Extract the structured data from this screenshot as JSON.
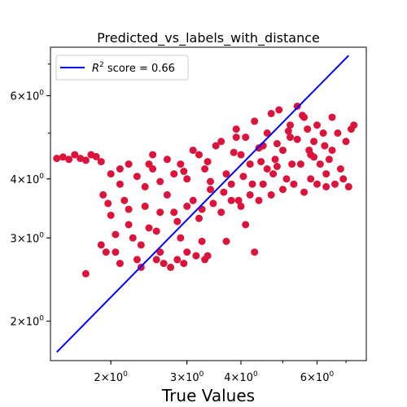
{
  "chart_data": {
    "type": "scatter",
    "title": "Predicted_vs_labels_with_distance",
    "xlabel": "True Values",
    "ylabel": "",
    "xscale": "log",
    "yscale": "log",
    "xlim": [
      1.45,
      7.8
    ],
    "ylim": [
      1.65,
      7.6
    ],
    "grid": false,
    "legend_position": "top-left",
    "x_tick_labels": [
      {
        "value": 2,
        "base": "2",
        "exp": "0"
      },
      {
        "value": 3,
        "base": "3",
        "exp": "0"
      },
      {
        "value": 4,
        "base": "4",
        "exp": "0"
      },
      {
        "value": 6,
        "base": "6",
        "exp": "0"
      }
    ],
    "y_tick_labels": [
      {
        "value": 2,
        "base": "2",
        "exp": "0"
      },
      {
        "value": 3,
        "base": "3",
        "exp": "0"
      },
      {
        "value": 4,
        "base": "4",
        "exp": "0"
      },
      {
        "value": 6,
        "base": "6",
        "exp": "0"
      }
    ],
    "scatter_color": "#dc143c",
    "line_color": "#0000ff",
    "legend_entry": {
      "prefix": "R",
      "sup": "2",
      "suffix": " score = 0.66"
    },
    "fit_line": {
      "x": [
        1.5,
        7.1
      ],
      "y": [
        1.72,
        7.3
      ]
    },
    "points": [
      [
        1.5,
        4.42
      ],
      [
        1.55,
        4.45
      ],
      [
        1.6,
        4.4
      ],
      [
        1.65,
        4.5
      ],
      [
        1.7,
        4.42
      ],
      [
        1.75,
        4.38
      ],
      [
        1.8,
        4.5
      ],
      [
        1.85,
        4.46
      ],
      [
        1.75,
        2.52
      ],
      [
        1.9,
        2.9
      ],
      [
        1.95,
        2.8
      ],
      [
        1.92,
        3.7
      ],
      [
        1.97,
        3.55
      ],
      [
        2.0,
        3.35
      ],
      [
        2.05,
        2.8
      ],
      [
        2.1,
        2.65
      ],
      [
        2.0,
        4.1
      ],
      [
        2.1,
        3.9
      ],
      [
        2.15,
        3.6
      ],
      [
        2.2,
        3.2
      ],
      [
        2.25,
        3.0
      ],
      [
        2.3,
        2.7
      ],
      [
        2.35,
        2.9
      ],
      [
        2.4,
        3.5
      ],
      [
        2.2,
        4.3
      ],
      [
        2.3,
        4.05
      ],
      [
        2.4,
        3.85
      ],
      [
        2.5,
        4.5
      ],
      [
        2.55,
        3.1
      ],
      [
        2.6,
        2.8
      ],
      [
        2.65,
        2.65
      ],
      [
        2.7,
        3.7
      ],
      [
        2.5,
        4.2
      ],
      [
        2.6,
        3.95
      ],
      [
        2.7,
        4.4
      ],
      [
        2.8,
        3.4
      ],
      [
        2.85,
        2.7
      ],
      [
        2.9,
        3.0
      ],
      [
        3.0,
        2.8
      ],
      [
        3.1,
        3.6
      ],
      [
        2.8,
        4.1
      ],
      [
        2.9,
        4.3
      ],
      [
        3.0,
        4.0
      ],
      [
        3.1,
        4.6
      ],
      [
        3.2,
        3.3
      ],
      [
        3.25,
        2.95
      ],
      [
        3.3,
        2.7
      ],
      [
        3.4,
        3.8
      ],
      [
        3.2,
        4.5
      ],
      [
        3.3,
        4.2
      ],
      [
        3.4,
        3.95
      ],
      [
        3.5,
        4.7
      ],
      [
        3.6,
        3.4
      ],
      [
        3.7,
        2.95
      ],
      [
        3.8,
        3.6
      ],
      [
        3.9,
        4.9
      ],
      [
        3.6,
        4.8
      ],
      [
        3.7,
        4.1
      ],
      [
        3.8,
        3.9
      ],
      [
        3.9,
        5.1
      ],
      [
        4.0,
        3.5
      ],
      [
        4.1,
        3.2
      ],
      [
        4.2,
        3.7
      ],
      [
        4.3,
        2.8
      ],
      [
        4.0,
        4.5
      ],
      [
        4.1,
        4.9
      ],
      [
        4.2,
        4.3
      ],
      [
        4.3,
        5.3
      ],
      [
        4.4,
        3.6
      ],
      [
        4.5,
        3.9
      ],
      [
        4.6,
        4.2
      ],
      [
        4.7,
        5.5
      ],
      [
        4.5,
        4.7
      ],
      [
        4.6,
        5.0
      ],
      [
        4.7,
        3.7
      ],
      [
        4.8,
        4.4
      ],
      [
        4.9,
        5.6
      ],
      [
        5.0,
        3.8
      ],
      [
        5.1,
        4.0
      ],
      [
        5.2,
        5.2
      ],
      [
        5.0,
        4.6
      ],
      [
        5.2,
        4.9
      ],
      [
        5.3,
        3.9
      ],
      [
        5.4,
        5.7
      ],
      [
        5.5,
        4.3
      ],
      [
        5.6,
        3.75
      ],
      [
        5.7,
        5.1
      ],
      [
        5.8,
        4.5
      ],
      [
        5.6,
        5.4
      ],
      [
        5.8,
        4.0
      ],
      [
        5.9,
        4.8
      ],
      [
        6.0,
        3.9
      ],
      [
        6.1,
        4.3
      ],
      [
        6.2,
        5.0
      ],
      [
        6.3,
        3.85
      ],
      [
        6.4,
        4.4
      ],
      [
        6.0,
        5.2
      ],
      [
        6.3,
        4.1
      ],
      [
        6.5,
        4.6
      ],
      [
        6.6,
        3.9
      ],
      [
        6.8,
        4.2
      ],
      [
        7.0,
        4.8
      ],
      [
        7.1,
        3.85
      ],
      [
        7.2,
        5.1
      ],
      [
        6.5,
        5.4
      ],
      [
        6.7,
        5.0
      ],
      [
        6.9,
        4.0
      ],
      [
        7.3,
        5.2
      ],
      [
        5.9,
        4.45
      ],
      [
        5.4,
        4.85
      ],
      [
        4.85,
        4.25
      ],
      [
        4.4,
        4.65
      ],
      [
        3.85,
        4.55
      ],
      [
        3.35,
        4.35
      ],
      [
        2.95,
        4.15
      ],
      [
        2.45,
        4.3
      ],
      [
        2.1,
        4.2
      ],
      [
        1.9,
        4.35
      ],
      [
        2.2,
        3.45
      ],
      [
        2.6,
        3.4
      ],
      [
        3.0,
        3.5
      ],
      [
        3.45,
        3.55
      ],
      [
        3.95,
        3.6
      ],
      [
        4.25,
        3.9
      ],
      [
        4.75,
        4.1
      ],
      [
        5.25,
        4.3
      ],
      [
        5.75,
        4.6
      ],
      [
        6.25,
        4.7
      ],
      [
        2.35,
        2.6
      ],
      [
        2.75,
        2.6
      ],
      [
        3.15,
        2.75
      ],
      [
        2.55,
        2.7
      ],
      [
        2.95,
        2.65
      ],
      [
        3.35,
        2.75
      ],
      [
        2.05,
        3.05
      ],
      [
        2.45,
        3.15
      ],
      [
        2.85,
        3.25
      ],
      [
        3.25,
        3.45
      ],
      [
        3.65,
        3.75
      ],
      [
        4.05,
        4.05
      ],
      [
        4.45,
        4.35
      ],
      [
        4.85,
        4.75
      ],
      [
        5.15,
        5.05
      ],
      [
        5.55,
        5.45
      ]
    ]
  }
}
